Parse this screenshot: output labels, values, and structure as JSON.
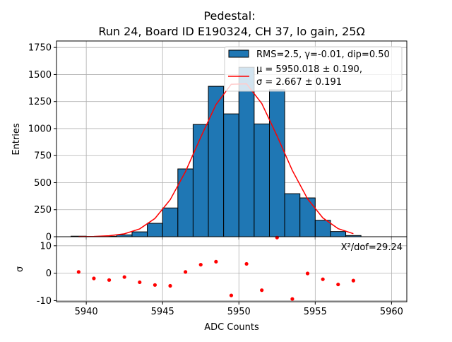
{
  "chart_data": [
    {
      "type": "bar",
      "title_line1": "Pedestal:",
      "title_line2": "Run 24, Board ID E190324, CH 37, lo gain, 25Ω",
      "ylabel": "Entries",
      "xlim": [
        5938.05,
        5961.0
      ],
      "ylim": [
        0,
        1810
      ],
      "xticks": [
        5940,
        5945,
        5950,
        5955,
        5960
      ],
      "yticks": [
        0,
        250,
        500,
        750,
        1000,
        1250,
        1500,
        1750
      ],
      "grid": true,
      "bin_edges": [
        5939,
        5940,
        5941,
        5942,
        5943,
        5944,
        5945,
        5946,
        5947,
        5948,
        5949,
        5950,
        5951,
        5952,
        5953,
        5954,
        5955,
        5956,
        5957,
        5958
      ],
      "values": [
        5,
        2,
        4,
        17,
        45,
        124,
        266,
        627,
        1038,
        1391,
        1136,
        1567,
        1043,
        1359,
        398,
        359,
        152,
        48,
        11
      ],
      "bar_color": "#1f77b4",
      "fit": {
        "type": "gaussian",
        "mu": 5950.018,
        "sigma": 2.667,
        "amplitude": 1437,
        "color": "#ff0000"
      },
      "legend": {
        "placement": "top-right",
        "entries": [
          "RMS=2.5, γ=-0.01, dip=0.50",
          "μ = 5950.018 ± 0.190,",
          "σ = 2.667 ± 0.191"
        ]
      }
    },
    {
      "type": "scatter",
      "xlabel": "ADC Counts",
      "ylabel": "σ",
      "ylim": [
        -10.4,
        13.3
      ],
      "yticks": [
        -10,
        0,
        10
      ],
      "annotation": "X²/dof=29.24",
      "x": [
        5939.5,
        5940.5,
        5941.5,
        5942.5,
        5943.5,
        5944.5,
        5945.5,
        5946.5,
        5947.5,
        5948.5,
        5949.5,
        5950.5,
        5951.5,
        5952.5,
        5953.5,
        5954.5,
        5955.5,
        5956.5,
        5957.5
      ],
      "y": [
        0.45,
        -1.9,
        -2.5,
        -1.4,
        -3.3,
        -4.3,
        -4.6,
        0.45,
        3.1,
        4.2,
        -8.1,
        3.4,
        -6.2,
        13.0,
        -9.4,
        -0.1,
        -2.2,
        -4.1,
        -2.7
      ],
      "color": "#ff0000"
    }
  ]
}
